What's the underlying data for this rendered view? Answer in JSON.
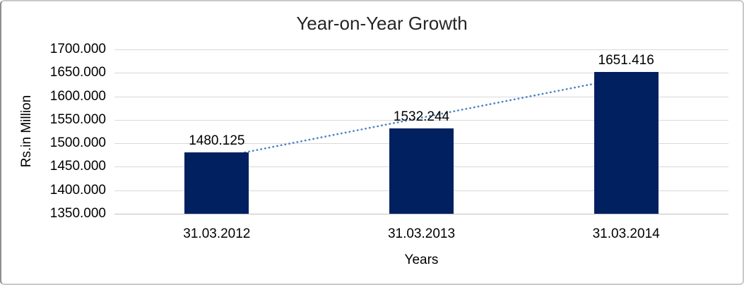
{
  "chart_data": {
    "type": "bar",
    "title": "Year-on-Year Growth",
    "xlabel": "Years",
    "ylabel": "Rs.in Million",
    "categories": [
      "31.03.2012",
      "31.03.2013",
      "31.03.2014"
    ],
    "values": [
      1480.125,
      1532.244,
      1651.416
    ],
    "data_labels": [
      "1480.125",
      "1532.244",
      "1651.416"
    ],
    "ytick_labels": [
      "1350.000",
      "1400.000",
      "1450.000",
      "1500.000",
      "1550.000",
      "1600.000",
      "1650.000",
      "1700.000"
    ],
    "yticks": [
      1350,
      1400,
      1450,
      1500,
      1550,
      1600,
      1650,
      1700
    ],
    "ylim": [
      1350,
      1700
    ],
    "grid": true,
    "legend_position": "none",
    "trendline": {
      "type": "linear",
      "style": "dotted"
    },
    "colors": {
      "bar": "#002060",
      "trendline": "#4a84c6",
      "gridline": "#d9d9d9",
      "axis_line": "#c0c0c0",
      "text": "#000000",
      "title_text": "#262626",
      "background": "#ffffff"
    }
  }
}
